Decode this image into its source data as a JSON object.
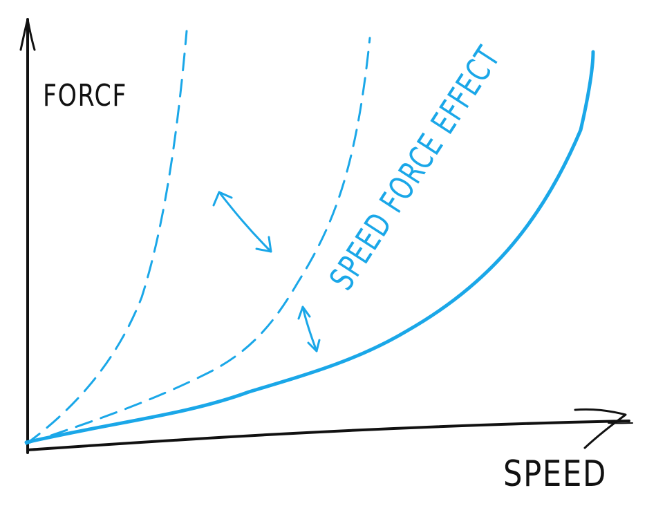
{
  "axes": {
    "y_label": "FORCF",
    "x_label": "SPEED"
  },
  "annotation": {
    "text": "SPEED FORCE EFFECT"
  },
  "colors": {
    "axis": "#111111",
    "curve": "#1aa7e8",
    "background": "#ffffff"
  },
  "chart_data": {
    "type": "line",
    "title": "",
    "xlabel": "SPEED",
    "ylabel": "FORCF",
    "grid": false,
    "series": [
      {
        "style": "solid"
      },
      {
        "style": "dashed"
      },
      {
        "style": "dashed"
      }
    ],
    "arrows": 2
  }
}
